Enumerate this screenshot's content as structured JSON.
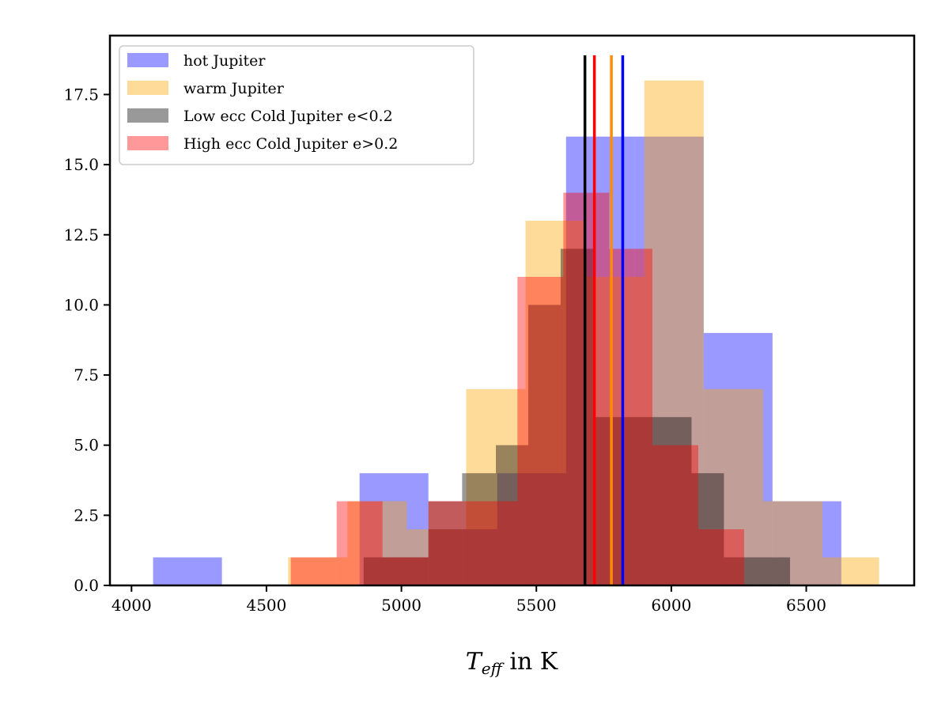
{
  "chart_data": {
    "type": "histogram",
    "title": "",
    "xlabel": {
      "symbol": "T",
      "subscript": "eff",
      "suffix": " in K"
    },
    "ylabel": "",
    "xlim": [
      3920,
      6900
    ],
    "ylim": [
      0,
      19.6
    ],
    "x_ticks": [
      "4000",
      "4500",
      "5000",
      "5500",
      "6000",
      "6500"
    ],
    "y_ticks": [
      "0.0",
      "2.5",
      "5.0",
      "7.5",
      "10.0",
      "12.5",
      "15.0",
      "17.5"
    ],
    "legend_position": "upper-left",
    "series": [
      {
        "name": "hot Jupiter",
        "color": "#0000ff",
        "opacity": 0.4,
        "bin_edges": [
          4080,
          4335,
          4590,
          4845,
          5100,
          5355,
          5610,
          5865,
          6120,
          6375,
          6630
        ],
        "counts": [
          1,
          0,
          0,
          4,
          2,
          4,
          16,
          16,
          9,
          3
        ]
      },
      {
        "name": "warm Jupiter",
        "color": "#ffa500",
        "opacity": 0.4,
        "bin_edges": [
          4580,
          4800,
          5020,
          5240,
          5460,
          5680,
          5900,
          6120,
          6340,
          6560,
          6770
        ],
        "counts": [
          1,
          3,
          2,
          7,
          13,
          11,
          18,
          7,
          3,
          1
        ]
      },
      {
        "name": "Low ecc Cold Jupiter e<0.2",
        "color": "#000000",
        "opacity": 0.4,
        "bin_edges": [
          4860,
          4975,
          5100,
          5225,
          5350,
          5470,
          5590,
          5710,
          5830,
          5955,
          6075,
          6195,
          6320,
          6440
        ],
        "counts": [
          1,
          1,
          3,
          4,
          5,
          10,
          12,
          6,
          6,
          6,
          4,
          1,
          1
        ]
      },
      {
        "name": "High ecc Cold Jupiter e>0.2",
        "color": "#ff0000",
        "opacity": 0.4,
        "bin_edges": [
          4590,
          4760,
          4930,
          5100,
          5260,
          5430,
          5600,
          5770,
          5930,
          6100,
          6270
        ],
        "counts": [
          1,
          3,
          1,
          3,
          3,
          11,
          14,
          12,
          5,
          2
        ]
      }
    ],
    "vertical_lines": [
      {
        "series": "Low ecc Cold Jupiter e<0.2",
        "x": 5680,
        "color": "#000000"
      },
      {
        "series": "High ecc Cold Jupiter e>0.2",
        "x": 5715,
        "color": "#ff0000"
      },
      {
        "series": "warm Jupiter",
        "x": 5778,
        "color": "#ff8c00"
      },
      {
        "series": "hot Jupiter",
        "x": 5820,
        "color": "#0000ff"
      }
    ],
    "vline_ymax": 18.9
  }
}
